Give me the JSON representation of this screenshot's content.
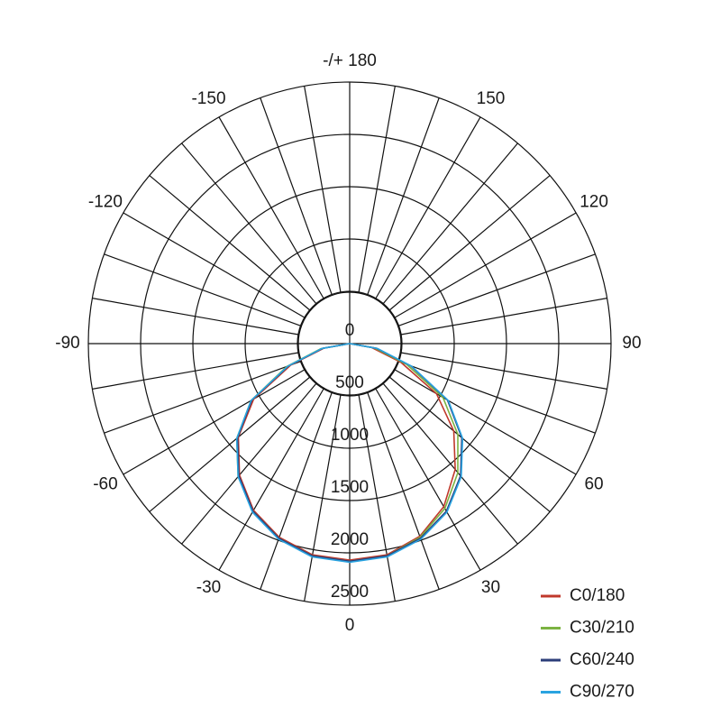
{
  "chart_data": {
    "type": "polar",
    "x": [
      -90,
      -80,
      -70,
      -60,
      -50,
      -40,
      -30,
      -20,
      -10,
      0,
      10,
      20,
      30,
      40,
      50,
      60,
      70,
      80,
      90
    ],
    "series": [
      {
        "name": "C0/180",
        "color": "#c0392b",
        "values": [
          0,
          250,
          600,
          1060,
          1390,
          1640,
          1840,
          1970,
          2050,
          2070,
          2050,
          1960,
          1800,
          1570,
          1300,
          960,
          520,
          210,
          0
        ]
      },
      {
        "name": "C30/210",
        "color": "#7cb342",
        "values": [
          0,
          280,
          640,
          1090,
          1410,
          1660,
          1850,
          1980,
          2060,
          2080,
          2060,
          1970,
          1820,
          1610,
          1350,
          1030,
          580,
          240,
          0
        ]
      },
      {
        "name": "C60/240",
        "color": "#2c3e7a",
        "values": [
          0,
          260,
          620,
          1080,
          1400,
          1650,
          1850,
          1980,
          2060,
          2080,
          2060,
          1980,
          1850,
          1650,
          1400,
          1080,
          620,
          260,
          0
        ]
      },
      {
        "name": "C90/270",
        "color": "#29a3e0",
        "values": [
          0,
          270,
          630,
          1090,
          1410,
          1660,
          1860,
          1990,
          2070,
          2090,
          2070,
          1990,
          1860,
          1660,
          1410,
          1090,
          630,
          270,
          0
        ]
      }
    ],
    "rlim": [
      0,
      2500
    ],
    "rticks": [
      0,
      500,
      1000,
      1500,
      2000,
      2500
    ],
    "angle_ticks": [
      {
        "value": 180,
        "label": "-/+ 180"
      },
      150,
      120,
      90,
      60,
      30,
      0,
      -30,
      -60,
      -90,
      -120,
      -150
    ],
    "legend": "bottom-right"
  }
}
